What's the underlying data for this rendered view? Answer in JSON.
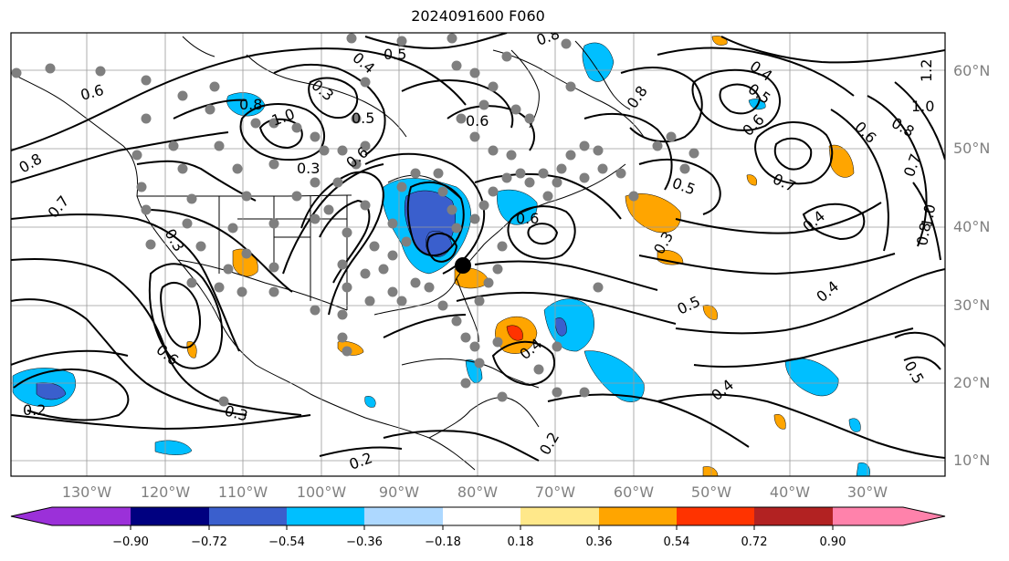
{
  "title": "2024091600 F060",
  "lat_labels": [
    "60°N",
    "50°N",
    "40°N",
    "30°N",
    "20°N",
    "10°N"
  ],
  "lon_labels": [
    "130°W",
    "120°W",
    "110°W",
    "100°W",
    "90°W",
    "80°W",
    "70°W",
    "60°W",
    "50°W",
    "40°W",
    "30°W"
  ],
  "colorbar": {
    "ticks": [
      "−0.90",
      "−0.72",
      "−0.54",
      "−0.36",
      "−0.18",
      "0.18",
      "0.36",
      "0.54",
      "0.72",
      "0.90"
    ],
    "colors": [
      "#9b30d9",
      "#000080",
      "#3a5fcd",
      "#00bfff",
      "#add8ff",
      "#ffffff",
      "#ffe88a",
      "#ffa500",
      "#ff3300",
      "#b22222",
      "#ff82ab"
    ]
  },
  "contour_labels": [
    "0.6",
    "0.8",
    "0.7",
    "0.3",
    "0.4",
    "0.3",
    "0.5",
    "1.0",
    "0.8",
    "0.6",
    "0.3",
    "0.6",
    "0.5",
    "0.2",
    "0.3",
    "0.6",
    "0.2",
    "0.4",
    "0.5",
    "0.4",
    "0.8",
    "0.6",
    "0.5",
    "0.7",
    "0.4",
    "0.8",
    "1.0",
    "1.2",
    "0.7",
    "0.8",
    "0.6",
    "0.5",
    "0.4",
    "0.4",
    "0.5",
    "0.8",
    "1.0",
    "0.3",
    "0.2",
    "0.6"
  ]
}
